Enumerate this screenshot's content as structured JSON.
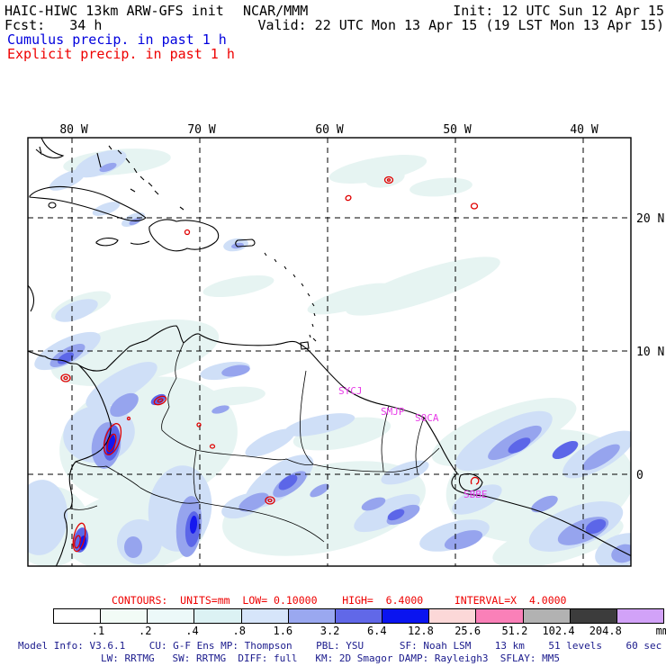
{
  "header": {
    "model_title": "HAIC-HIWC 13km ARW-GFS init",
    "org": "NCAR/MMM",
    "init": "Init: 12 UTC Sun 12 Apr 15",
    "fcst": "Fcst:   34 h",
    "valid": "Valid: 22 UTC Mon 13 Apr 15 (19 LST Mon 13 Apr 15)",
    "cumulus_legend": "Cumulus precip. in past 1 h",
    "explicit_legend": "Explicit precip. in past 1 h"
  },
  "map": {
    "lon_labels": [
      "80 W",
      "70 W",
      "60 W",
      "50 W",
      "40 W"
    ],
    "lat_labels": [
      "20 N",
      "10 N",
      "0"
    ],
    "stations": [
      "SYCJ",
      "SMJP",
      "SOCA",
      "SBBE"
    ]
  },
  "contours": {
    "label": "CONTOURS:",
    "units": "UNITS=mm",
    "low": "LOW= 0.10000",
    "high": "HIGH=  6.4000",
    "interval": "INTERVAL=X  4.0000"
  },
  "colorbar": {
    "cells": [
      "#ffffff",
      "#f2fbf6",
      "#ecf9f9",
      "#dcf2f4",
      "#d6e5fa",
      "#9aa8f0",
      "#6168e8",
      "#0a14f0",
      "#fcd8d8",
      "#fa80b8",
      "#b2b2b2",
      "#3c3c3c",
      "#d2a2f8"
    ],
    "labels": [
      ".1",
      ".2",
      ".4",
      ".8",
      "1.6",
      "3.2",
      "6.4",
      "12.8",
      "25.6",
      "51.2",
      "102.4",
      "204.8"
    ],
    "unit": "mm"
  },
  "model_info": {
    "line1": "Model Info: V3.6.1    CU: G-F Ens MP: Thompson    PBL: YSU      SF: Noah LSM    13 km    51 levels    60 sec",
    "line2": "LW: RRTMG   SW: RRTMG  DIFF: full   KM: 2D Smagor DAMP: Rayleigh3  SFLAY: MM5"
  },
  "colors": {
    "cumulus_text": "#0000dd",
    "explicit_text": "#ee0000",
    "contour_line": "#e00000",
    "model_info_text": "#1a1a8c",
    "station_text": "#e83ce8"
  }
}
